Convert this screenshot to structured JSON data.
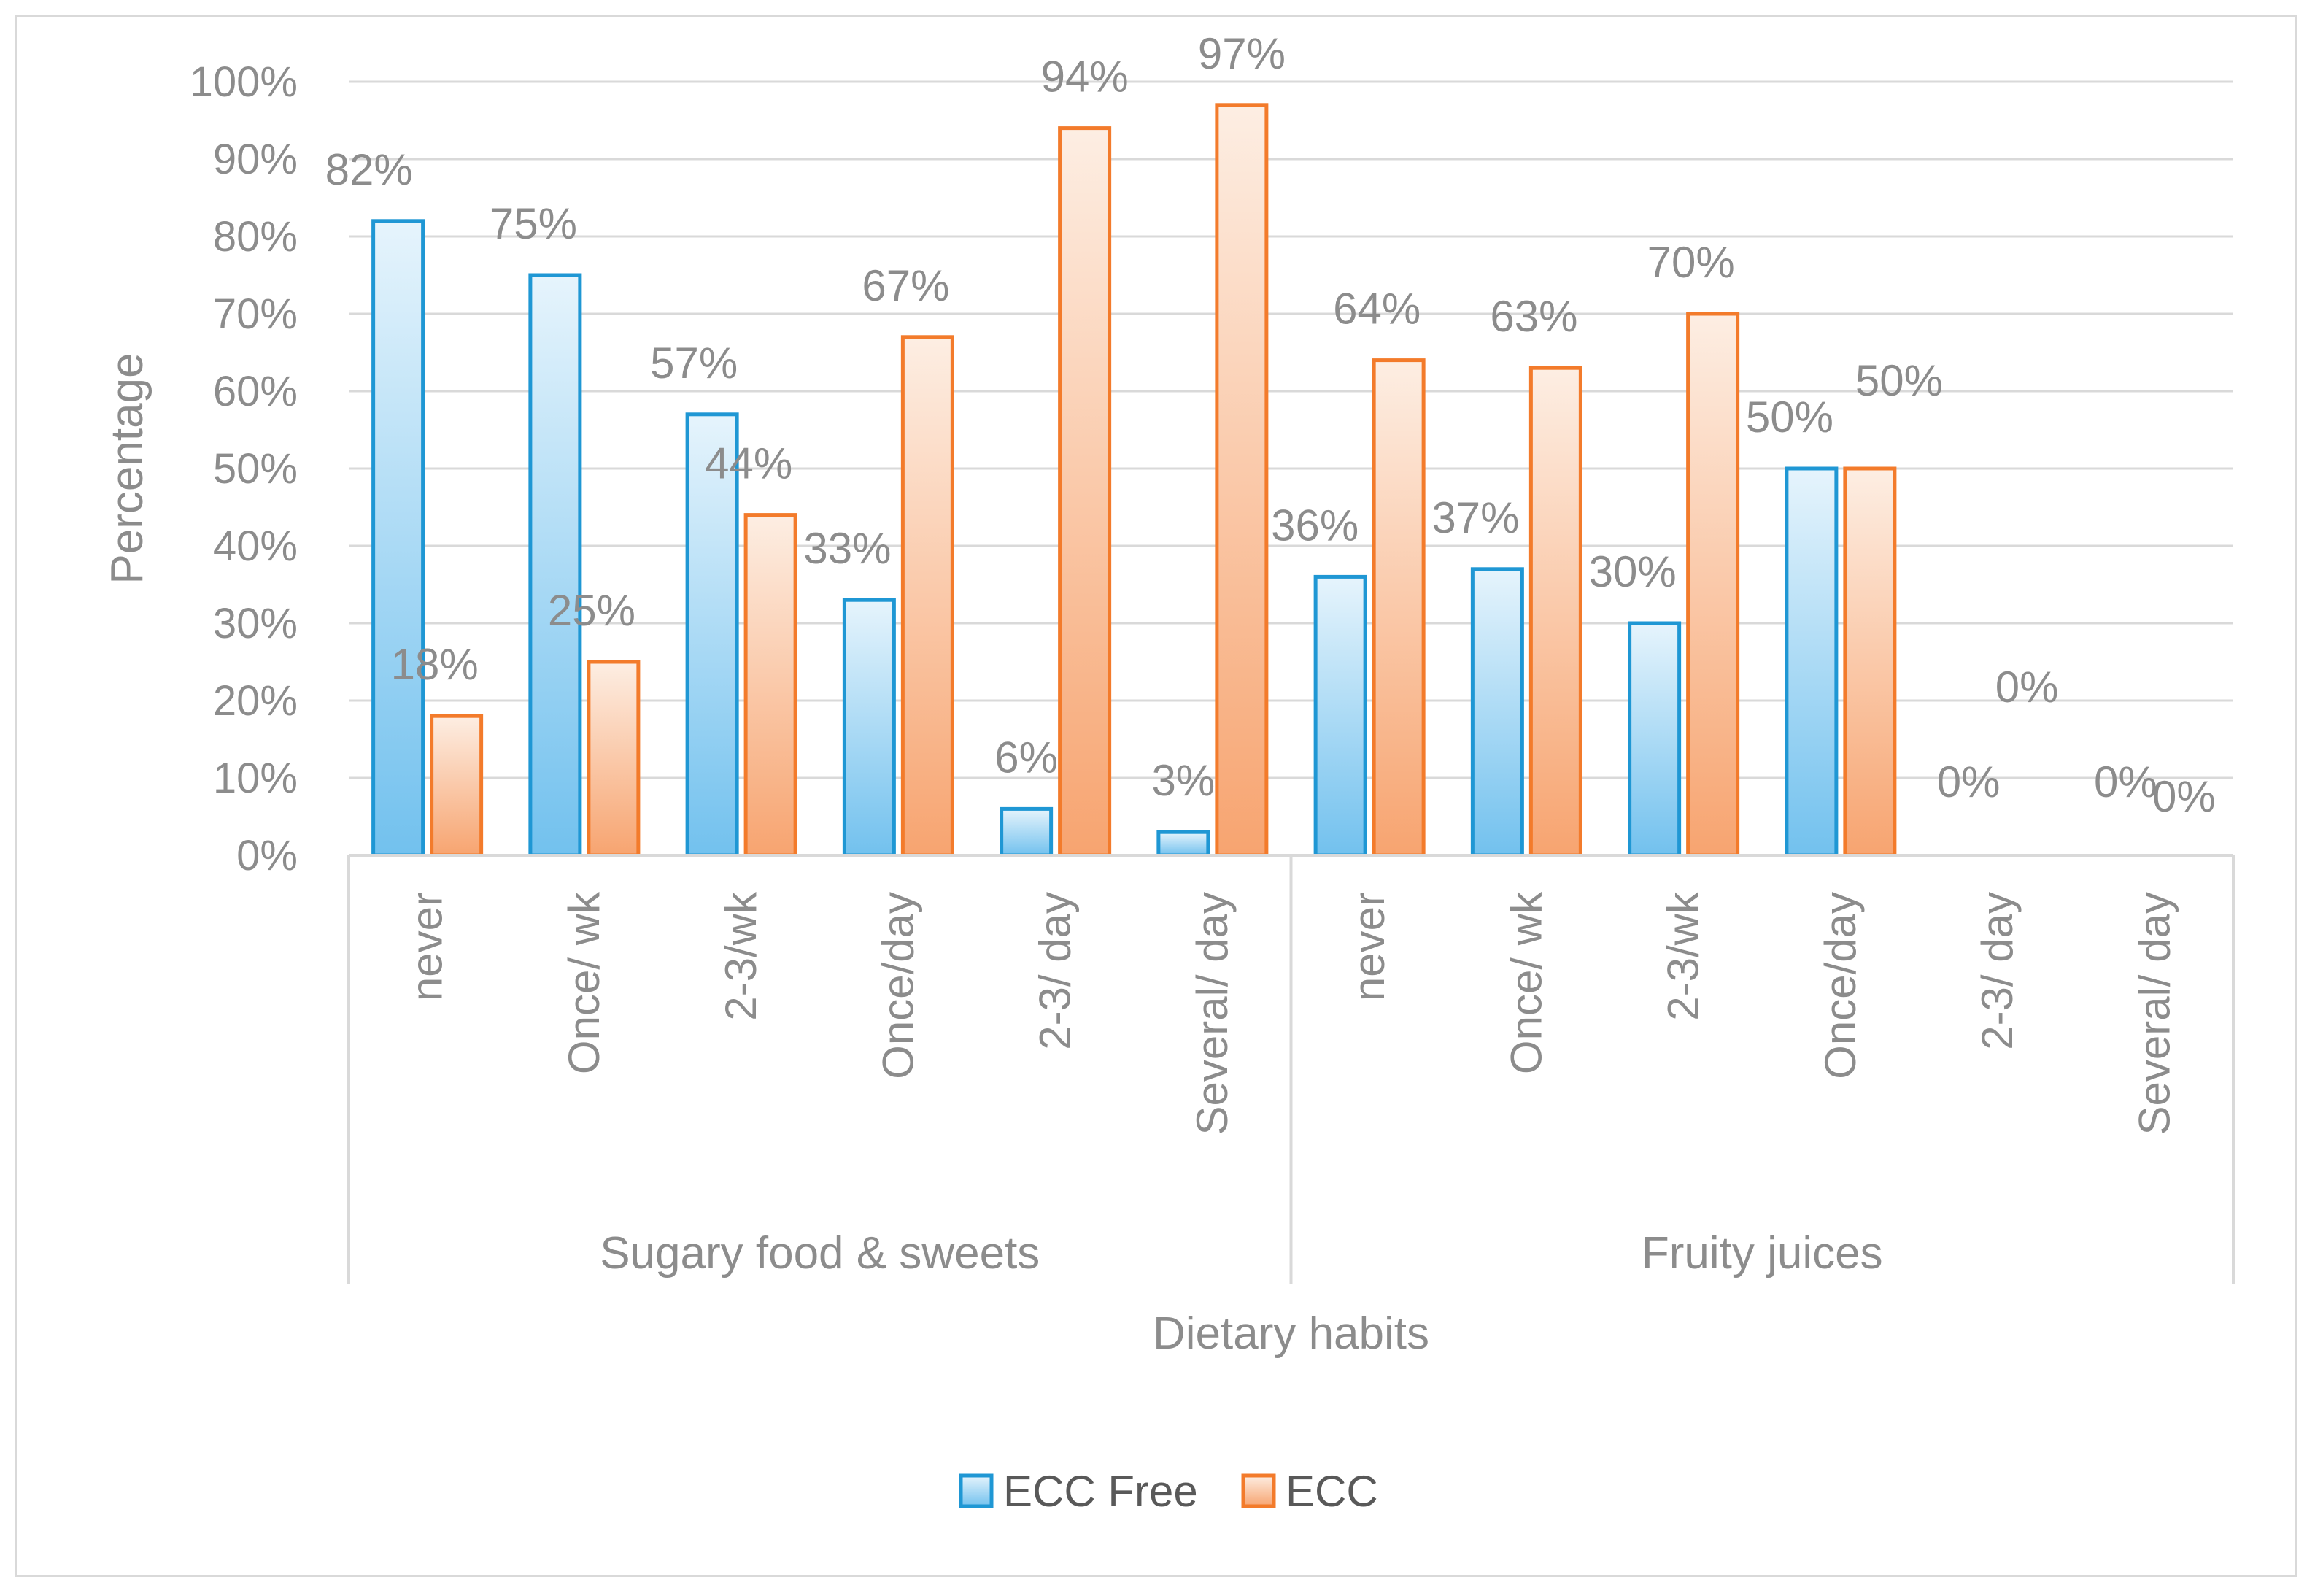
{
  "chart_data": {
    "type": "bar",
    "title": "",
    "xlabel": "Dietary habits",
    "ylabel": "Percentage",
    "ylim": [
      0,
      100
    ],
    "ytick_step": 10,
    "ytick_suffix": "%",
    "grid": true,
    "legend_position": "bottom",
    "groups": [
      {
        "name": "Sugary food & sweets",
        "categories": [
          "never",
          "Once/ wk",
          "2-3/wk",
          "Once/day",
          "2-3/ day",
          "Several/ day"
        ]
      },
      {
        "name": "Fruity juices",
        "categories": [
          "never",
          "Once/ wk",
          "2-3/wk",
          "Once/day",
          "2-3/ day",
          "Several/ day"
        ]
      }
    ],
    "series": [
      {
        "name": "ECC Free",
        "color": "#1f97d4",
        "values": [
          82,
          75,
          57,
          33,
          6,
          3,
          36,
          37,
          30,
          50,
          0,
          0
        ],
        "labels": [
          "82%",
          "75%",
          "57%",
          "33%",
          "6%",
          "3%",
          "36%",
          "37%",
          "30%",
          "50%",
          "0%",
          "0%"
        ]
      },
      {
        "name": "ECC",
        "color": "#f37b2b",
        "values": [
          18,
          25,
          44,
          67,
          94,
          97,
          64,
          63,
          70,
          50,
          0,
          0
        ],
        "labels": [
          "18%",
          "25%",
          "44%",
          "67%",
          "94%",
          "97%",
          "64%",
          "63%",
          "70%",
          "50%",
          "0%",
          "0%"
        ]
      }
    ]
  }
}
